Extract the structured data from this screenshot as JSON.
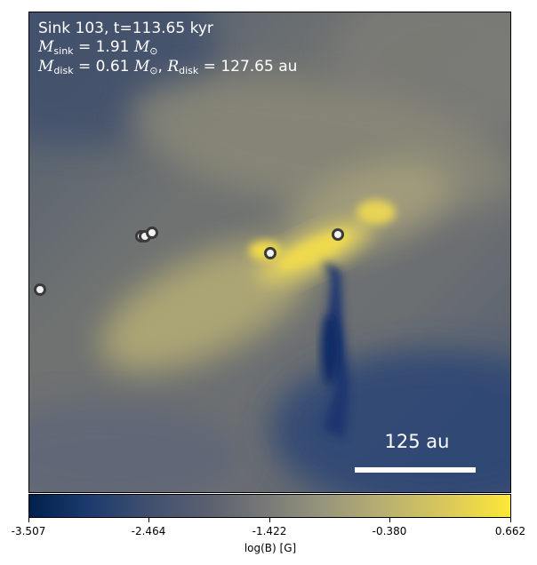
{
  "annotation": {
    "line1": "Sink 103, t=113.65 kyr",
    "sink_mass_symbol": "M",
    "sink_mass_sub": "sink",
    "sink_mass_value": " = 1.91 ",
    "disk_mass_symbol": "M",
    "disk_mass_sub": "disk",
    "disk_mass_value": " = 0.61 ",
    "disk_radius_symbol": "R",
    "disk_radius_sub": "disk",
    "disk_radius_value": " = 127.65 au",
    "solar_mass_symbol": "M",
    "solar_sub": "⊙"
  },
  "scale_bar": {
    "label": "125 au"
  },
  "colorbar": {
    "label": "log(B) [G]",
    "ticks": [
      "-3.507",
      "-2.464",
      "-1.422",
      "-0.380",
      "0.662"
    ],
    "colors": [
      "#00204c",
      "#5c616f",
      "#7a7b78",
      "#bbb26f",
      "#fde737"
    ]
  },
  "sinks": [
    {
      "name": "sink-particle"
    },
    {
      "name": "sink-particle"
    },
    {
      "name": "sink-particle"
    },
    {
      "name": "sink-particle"
    },
    {
      "name": "sink-particle"
    },
    {
      "name": "sink-particle"
    }
  ]
}
